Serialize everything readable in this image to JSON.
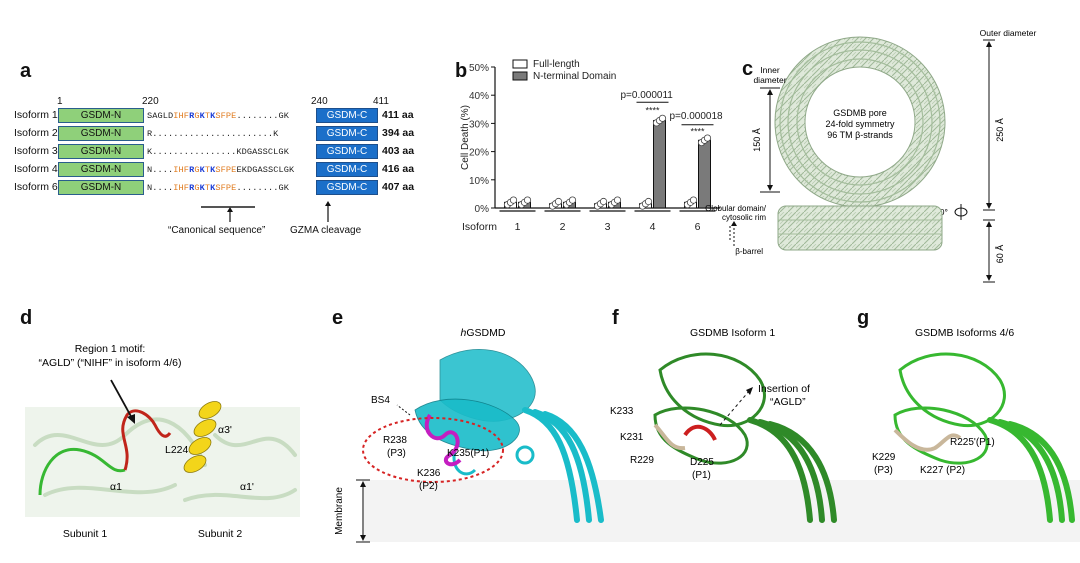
{
  "panels": {
    "a": "a",
    "b": "b",
    "c": "c",
    "d": "d",
    "e": "e",
    "f": "f",
    "g": "g"
  },
  "panel_a": {
    "ruler": [
      "1",
      "220",
      "240",
      "411"
    ],
    "gsdm_n": "GSDM-N",
    "gsdm_c": "GSDM-C",
    "isoforms": [
      {
        "label": "Isoform 1",
        "prefix": "SAGLD",
        "orange1": "IHF",
        "blue1": "R",
        "orange2": "G",
        "blue2": "K",
        "orange3": "T",
        "blue3": "K",
        "orange4": "SFPE",
        "suffix": "........GK",
        "aa": "411 aa"
      },
      {
        "label": "Isoform 2",
        "prefix": "R",
        "orange1": "",
        "blue1": "",
        "orange2": "",
        "blue2": "",
        "orange3": "",
        "blue3": "",
        "orange4": "",
        "suffix": ".......................K",
        "aa": "394 aa"
      },
      {
        "label": "Isoform 3",
        "prefix": "K",
        "orange1": "",
        "blue1": "",
        "orange2": "",
        "blue2": "",
        "orange3": "",
        "blue3": "",
        "orange4": "",
        "suffix": "................KDGASSCLGK",
        "aa": "403 aa"
      },
      {
        "label": "Isoform 4",
        "prefix": "N....",
        "orange1": "IHF",
        "blue1": "R",
        "orange2": "G",
        "blue2": "K",
        "orange3": "T",
        "blue3": "K",
        "orange4": "SFPE",
        "suffix": "EKDGASSCLGK",
        "aa": "416 aa"
      },
      {
        "label": "Isoform 6",
        "prefix": "N....",
        "orange1": "IHF",
        "blue1": "R",
        "orange2": "G",
        "blue2": "K",
        "orange3": "T",
        "blue3": "K",
        "orange4": "SFPE",
        "suffix": "........GK",
        "aa": "407 aa"
      }
    ],
    "canonical": "“Canonical sequence”",
    "gzma": "GZMA cleavage"
  },
  "chart_data": {
    "type": "bar",
    "ylabel": "Cell Death (%)",
    "xlabel": "Isoform",
    "categories": [
      "1",
      "2",
      "3",
      "4",
      "6"
    ],
    "ylim": [
      0,
      50
    ],
    "yticks": [
      "0%",
      "10%",
      "20%",
      "30%",
      "40%",
      "50%"
    ],
    "series": [
      {
        "name": "Full-length",
        "values": [
          2,
          1.5,
          1.5,
          1.5,
          2
        ],
        "color": "#ffffff"
      },
      {
        "name": "N-terminal Domain",
        "values": [
          2,
          2,
          2,
          31,
          24
        ],
        "color": "#7a7a7a"
      }
    ],
    "annotations": [
      "p=0.000011",
      "****",
      "p=0.000018",
      "****"
    ]
  },
  "panel_c": {
    "outer_diameter": "Outer diameter",
    "inner_diameter_1": "Inner",
    "inner_diameter_2": "diameter",
    "d150": "150 Å",
    "d250": "250 Å",
    "d60": "60 Å",
    "pore_1": "GSDMB pore",
    "pore_2": "24-fold symmetry",
    "pore_3": "96 TM β-strands",
    "rot": "90°",
    "globular_1": "Globular domain/",
    "globular_2": "cytosolic rim",
    "barrel": "β-barrel"
  },
  "panel_d": {
    "motif_1": "Region 1 motif:",
    "motif_2": "“AGLD” (“NIHF” in isoform 4/6)",
    "l224": "L224",
    "a3": "α3'",
    "a1": "α1",
    "a1p": "α1'",
    "sub1": "Subunit 1",
    "sub2": "Subunit 2"
  },
  "panel_e": {
    "title_italic": "h",
    "title": "GSDMD",
    "bs4": "BS4",
    "r238": "R238",
    "p3": "(P3)",
    "k235": "K235(P1)",
    "k236": "K236",
    "p2": "(P2)",
    "membrane": "Membrane"
  },
  "panel_f": {
    "title": "GSDMB Isoform 1",
    "insert_1": "Insertion of",
    "insert_2": "“AGLD”",
    "k233": "K233",
    "k231": "K231",
    "r229": "R229",
    "d225": "D225",
    "p1": "(P1)"
  },
  "panel_g": {
    "title": "GSDMB Isoforms 4/6",
    "r225": "R225'(P1)",
    "k229": "K229",
    "p3": "(P3)",
    "k227": "K227 (P2)"
  }
}
